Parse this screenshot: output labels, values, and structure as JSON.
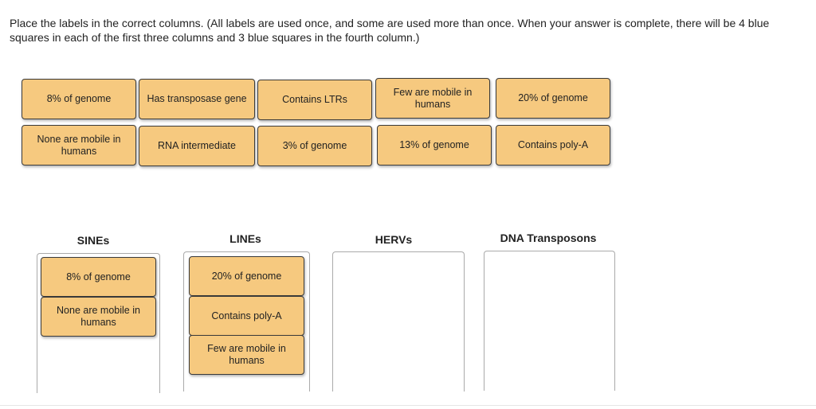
{
  "instructions": "Place the labels in the correct columns. (All labels are used once, and some are used more than once. When your answer is complete, there will be 4 blue squares in each of the first three columns and 3 blue squares in the fourth column.)",
  "label_bank": [
    "8% of genome",
    "Has transposase gene",
    "Contains LTRs",
    "Few are mobile in humans",
    "20% of genome",
    "None are mobile in humans",
    "RNA intermediate",
    "3% of genome",
    "13% of genome",
    "Contains poly-A"
  ],
  "columns": [
    {
      "title": "SINEs",
      "placed": [
        "8% of genome",
        "None are mobile in humans"
      ]
    },
    {
      "title": "LINEs",
      "placed": [
        "20% of genome",
        "Contains poly-A",
        "Few are mobile in humans"
      ]
    },
    {
      "title": "HERVs",
      "placed": []
    },
    {
      "title": "DNA Transposons",
      "placed": []
    }
  ],
  "colors": {
    "tile": "#f6c97f",
    "tile_border": "#3a3a3a"
  }
}
